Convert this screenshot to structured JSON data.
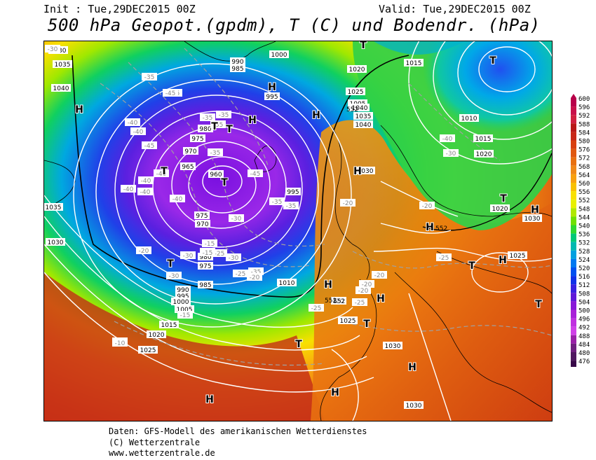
{
  "header": {
    "init": "Init : Tue,29DEC2015 00Z",
    "valid": "Valid: Tue,29DEC2015 00Z",
    "title": "500 hPa Geopot.(gpdm), T (C) und Bodendr. (hPa)"
  },
  "legend": {
    "levels": [
      "600",
      "596",
      "592",
      "588",
      "584",
      "580",
      "576",
      "572",
      "568",
      "564",
      "560",
      "556",
      "552",
      "548",
      "544",
      "540",
      "536",
      "532",
      "528",
      "524",
      "520",
      "516",
      "512",
      "508",
      "504",
      "500",
      "496",
      "492",
      "488",
      "484",
      "480",
      "476"
    ],
    "colors": [
      "#b8004a",
      "#c8104a",
      "#d02040",
      "#b81818",
      "#c82818",
      "#d84010",
      "#e05810",
      "#e87010",
      "#f08818",
      "#f8a010",
      "#f8c000",
      "#f8e000",
      "#e8f000",
      "#b0e800",
      "#70e000",
      "#30d830",
      "#00c878",
      "#00b8b0",
      "#00a0e0",
      "#0078f0",
      "#0050f0",
      "#1030e8",
      "#3820e0",
      "#6018d8",
      "#8818d8",
      "#a820d8",
      "#c030e0",
      "#d040e8",
      "#9a20a8",
      "#702080",
      "#501860",
      "#380848"
    ]
  },
  "map": {
    "pressure_labels": [
      "1030",
      "1035",
      "1040",
      "990",
      "985",
      "1000",
      "995",
      "1020",
      "1025",
      "1015",
      "1005",
      "1030",
      "980",
      "975",
      "970",
      "965",
      "960",
      "980",
      "975",
      "970",
      "995",
      "1035",
      "1040",
      "1030",
      "1010",
      "1010",
      "1015",
      "1020",
      "1020",
      "1030",
      "1035",
      "1040",
      "1025",
      "980",
      "975",
      "985",
      "990",
      "995",
      "1000",
      "1005",
      "1015",
      "1020",
      "1025",
      "1025",
      "1030",
      "1030",
      "1030"
    ],
    "temp_labels": [
      "-30",
      "-35",
      "-35",
      "-40",
      "-45",
      "-45",
      "-40",
      "-35",
      "-40",
      "-40",
      "-40",
      "-40",
      "-40",
      "-45",
      "-35",
      "-35",
      "-35",
      "-35",
      "-35",
      "-35",
      "-30",
      "-25",
      "-30",
      "-30",
      "-30",
      "-25",
      "-20",
      "-20",
      "-20",
      "-25",
      "-20",
      "-20",
      "-20",
      "-15",
      "-15",
      "-20",
      "-15",
      "-20",
      "-25",
      "-30",
      "-40",
      "-10",
      "-10",
      "-25"
    ],
    "height_labels": [
      "552",
      "552",
      "552",
      "552"
    ],
    "high_markers": [
      "H",
      "H",
      "H",
      "H",
      "H",
      "H",
      "H",
      "H",
      "H",
      "H",
      "H",
      "H",
      "H"
    ],
    "low_markers": [
      "T",
      "T",
      "T",
      "T",
      "T",
      "T",
      "T",
      "T",
      "T",
      "T",
      "T",
      "T"
    ]
  },
  "footer": {
    "line1": "Daten: GFS-Modell des amerikanischen Wetterdienstes",
    "line2": "(C) Wetterzentrale",
    "line3": "www.wetterzentrale.de"
  }
}
